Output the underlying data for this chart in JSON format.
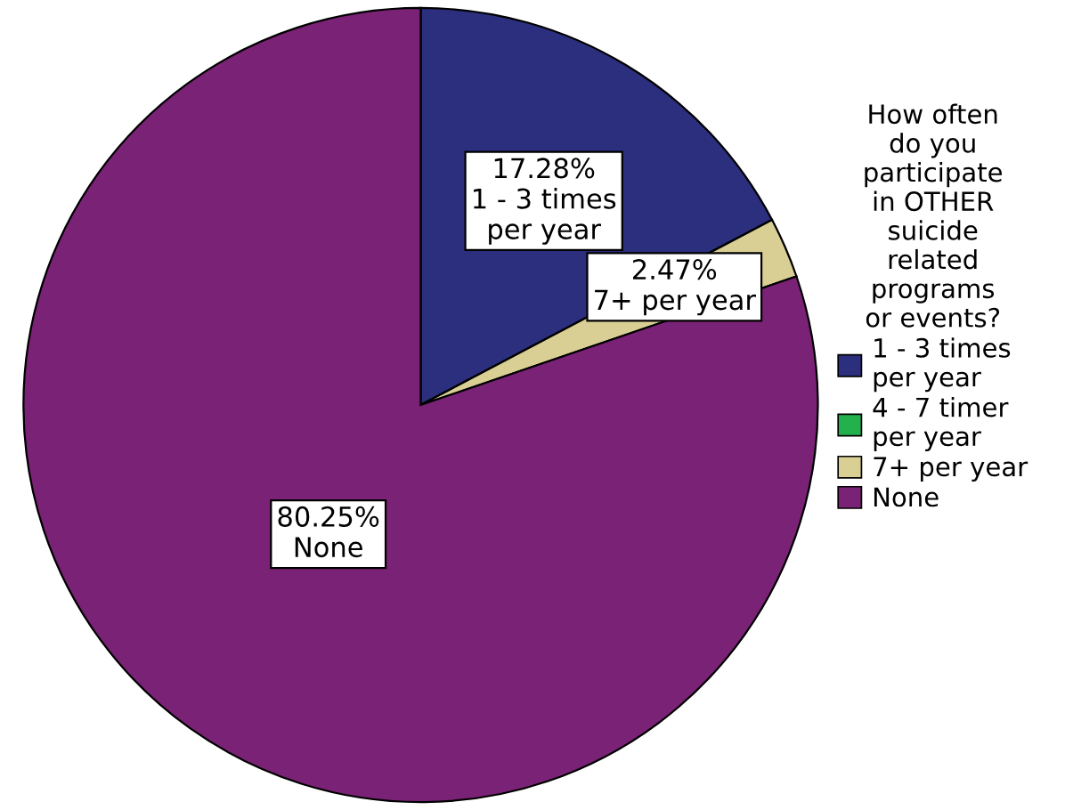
{
  "chart_data": {
    "type": "pie",
    "legend_title": "How often\ndo you\nparticipate\nin OTHER\nsuicide\nrelated\nprograms\nor events?",
    "categories": [
      "1 - 3 times\nper year",
      "4 - 7 timer\nper year",
      "7+ per year",
      "None"
    ],
    "values": [
      17.28,
      0,
      2.47,
      80.25
    ],
    "colors": [
      "#2b2f7e",
      "#22b14c",
      "#d9cf95",
      "#7a2275"
    ],
    "value_labels": [
      "17.28%\n1 - 3 times\nper year",
      null,
      "2.47%\n7+ per year",
      "80.25%\nNone"
    ],
    "legend": "right"
  }
}
